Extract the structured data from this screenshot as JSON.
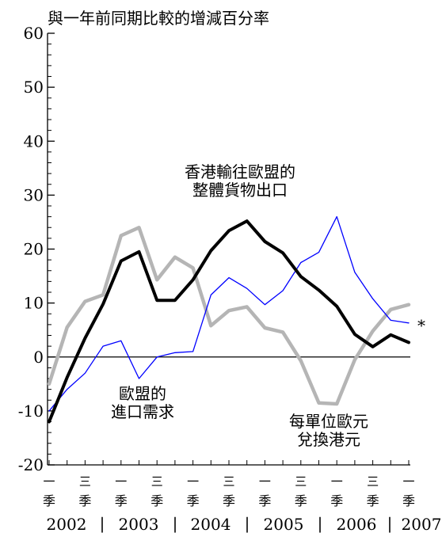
{
  "chart_data": {
    "type": "line",
    "subtitle": "與一年前同期比較的增減百分率",
    "ylim": [
      -20,
      60
    ],
    "y_ticks": [
      -20,
      -10,
      0,
      10,
      20,
      30,
      40,
      50,
      60
    ],
    "y_tick_labels": [
      "-20",
      "-10",
      "0",
      "10",
      "20",
      "30",
      "40",
      "50",
      "60"
    ],
    "x_quarter_labels": [
      {
        "q": "一",
        "s": "季"
      },
      {
        "q": "三",
        "s": "季"
      },
      {
        "q": "一",
        "s": "季"
      },
      {
        "q": "三",
        "s": "季"
      },
      {
        "q": "一",
        "s": "季"
      },
      {
        "q": "三",
        "s": "季"
      },
      {
        "q": "一",
        "s": "季"
      },
      {
        "q": "三",
        "s": "季"
      },
      {
        "q": "一",
        "s": "季"
      },
      {
        "q": "三",
        "s": "季"
      },
      {
        "q": "一",
        "s": "季"
      }
    ],
    "years": [
      "2002",
      "2003",
      "2004",
      "2005",
      "2006",
      "2007"
    ],
    "year_separator": "|",
    "x": [
      "2002 Q1",
      "2002 Q2",
      "2002 Q3",
      "2002 Q4",
      "2003 Q1",
      "2003 Q2",
      "2003 Q3",
      "2003 Q4",
      "2004 Q1",
      "2004 Q2",
      "2004 Q3",
      "2004 Q4",
      "2005 Q1",
      "2005 Q2",
      "2005 Q3",
      "2005 Q4",
      "2006 Q1",
      "2006 Q2",
      "2006 Q3",
      "2006 Q4",
      "2007 Q1"
    ],
    "series": [
      {
        "name": "香港輸往歐盟的整體貨物出口",
        "label_lines": [
          "香港輸往歐盟的",
          "整體貨物出口"
        ],
        "color": "#000000",
        "style": "thick",
        "values": [
          -12,
          -3.8,
          3.5,
          9.8,
          17.8,
          19.5,
          10.5,
          10.5,
          14.3,
          19.7,
          23.4,
          25.2,
          21.4,
          19.3,
          14.9,
          12.4,
          9.4,
          4.2,
          1.9,
          4.1,
          2.7
        ]
      },
      {
        "name": "歐盟的進口需求",
        "label_lines": [
          "歐盟的",
          "進口需求"
        ],
        "color": "#0000ff",
        "style": "thin",
        "values": [
          -10,
          -6,
          -3,
          2,
          3,
          -4,
          0,
          0.8,
          1,
          11.5,
          14.7,
          12.7,
          9.7,
          12.3,
          17.5,
          19.4,
          26,
          15.7,
          10.8,
          6.8,
          6.3
        ]
      },
      {
        "name": "每單位歐元兌換港元",
        "label_lines": [
          "每單位歐元",
          "兌換港元"
        ],
        "color": "#b5b5b5",
        "style": "thick",
        "values": [
          -5,
          5.5,
          10.3,
          11.5,
          22.5,
          24.0,
          14.3,
          18.5,
          16.5,
          5.8,
          8.6,
          9.3,
          5.4,
          4.6,
          -0.7,
          -8.5,
          -8.7,
          -0.5,
          4.8,
          8.8,
          9.7
        ]
      }
    ],
    "asterisk": "*",
    "grid": false
  }
}
